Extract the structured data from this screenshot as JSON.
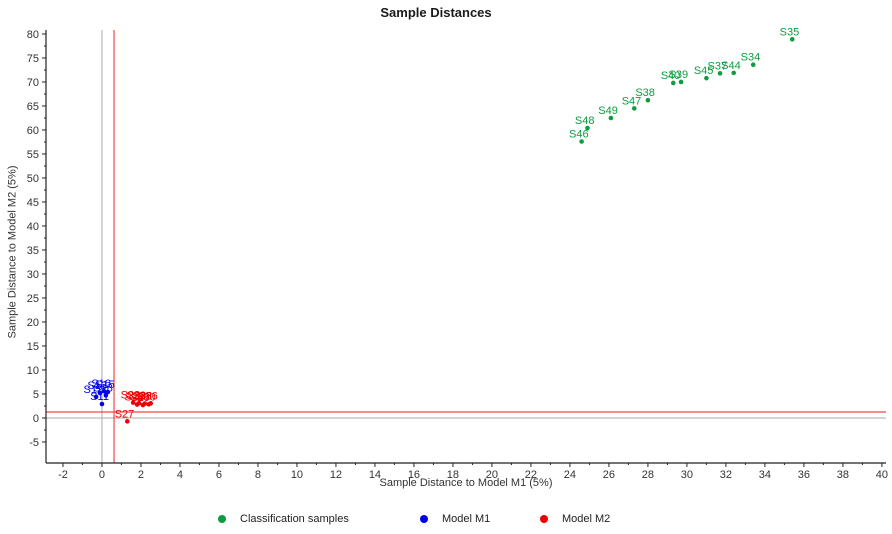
{
  "chart_data": {
    "type": "scatter",
    "title": "Sample Distances",
    "xlabel": "Sample Distance to Model M1 (5%)",
    "ylabel": "Sample Distance to Model M2 (5%)",
    "xlim": [
      -2.87,
      40.21
    ],
    "ylim": [
      -9.38,
      80.83
    ],
    "xticks": {
      "start": -2,
      "end": 40,
      "step": 2,
      "minor_step": 1
    },
    "yticks": {
      "start": -5,
      "end": 80,
      "step": 5,
      "minor_step": 2.5
    },
    "grid": false,
    "legend_position": "bottom",
    "reference_lines": {
      "x_zero": 0,
      "y_zero": 0,
      "x_critical_limit": 0.62,
      "y_critical_limit": 1.25
    },
    "series": [
      {
        "name": "Classification samples",
        "color": "#0a9e3f",
        "points": [
          {
            "label": "S46",
            "x": 24.6,
            "y": 57.6
          },
          {
            "label": "S48",
            "x": 24.9,
            "y": 60.4
          },
          {
            "label": "S49",
            "x": 26.1,
            "y": 62.5
          },
          {
            "label": "S47",
            "x": 27.3,
            "y": 64.5
          },
          {
            "label": "S38",
            "x": 28.0,
            "y": 66.2
          },
          {
            "label": "S40",
            "x": 29.3,
            "y": 69.8
          },
          {
            "label": "S39",
            "x": 29.7,
            "y": 70.0
          },
          {
            "label": "S45",
            "x": 31.0,
            "y": 70.8
          },
          {
            "label": "S37",
            "x": 31.7,
            "y": 71.8
          },
          {
            "label": "S44",
            "x": 32.4,
            "y": 71.9
          },
          {
            "label": "S34",
            "x": 33.4,
            "y": 73.6
          },
          {
            "label": "S35",
            "x": 35.4,
            "y": 78.9
          }
        ]
      },
      {
        "name": "Model M1",
        "color": "#0000ee",
        "points": [
          {
            "label": "S16",
            "x": 0.1,
            "y": 5.6
          },
          {
            "label": "S15",
            "x": 0.3,
            "y": 5.4
          },
          {
            "label": "S13",
            "x": -0.1,
            "y": 5.2
          },
          {
            "label": "S18",
            "x": 0.2,
            "y": 4.7
          },
          {
            "label": "S12",
            "x": -0.3,
            "y": 4.4
          },
          {
            "label": "S11",
            "x": 0.0,
            "y": 2.9
          }
        ]
      },
      {
        "name": "Model M2",
        "color": "#ee0000",
        "points": [
          {
            "label": "S22",
            "x": 1.6,
            "y": 3.2
          },
          {
            "label": "S23",
            "x": 1.9,
            "y": 3.1
          },
          {
            "label": "S25",
            "x": 2.2,
            "y": 3.0
          },
          {
            "label": "S26",
            "x": 2.5,
            "y": 3.05
          },
          {
            "label": "S28",
            "x": 1.8,
            "y": 2.8
          },
          {
            "label": "S29",
            "x": 2.1,
            "y": 2.7
          },
          {
            "label": "S30",
            "x": 2.4,
            "y": 2.85
          },
          {
            "label": "S27",
            "x": 1.3,
            "y": -0.7
          }
        ]
      }
    ],
    "legend": [
      {
        "label": "Classification samples",
        "color": "#0a9e3f"
      },
      {
        "label": "Model M1",
        "color": "#0000ee"
      },
      {
        "label": "Model M2",
        "color": "#ee0000"
      }
    ]
  },
  "colors": {
    "axis": "#222222",
    "tick_text": "#333333",
    "zero_line": "#aaaaaa",
    "limit_line": "#f04848",
    "background": "#ffffff"
  }
}
